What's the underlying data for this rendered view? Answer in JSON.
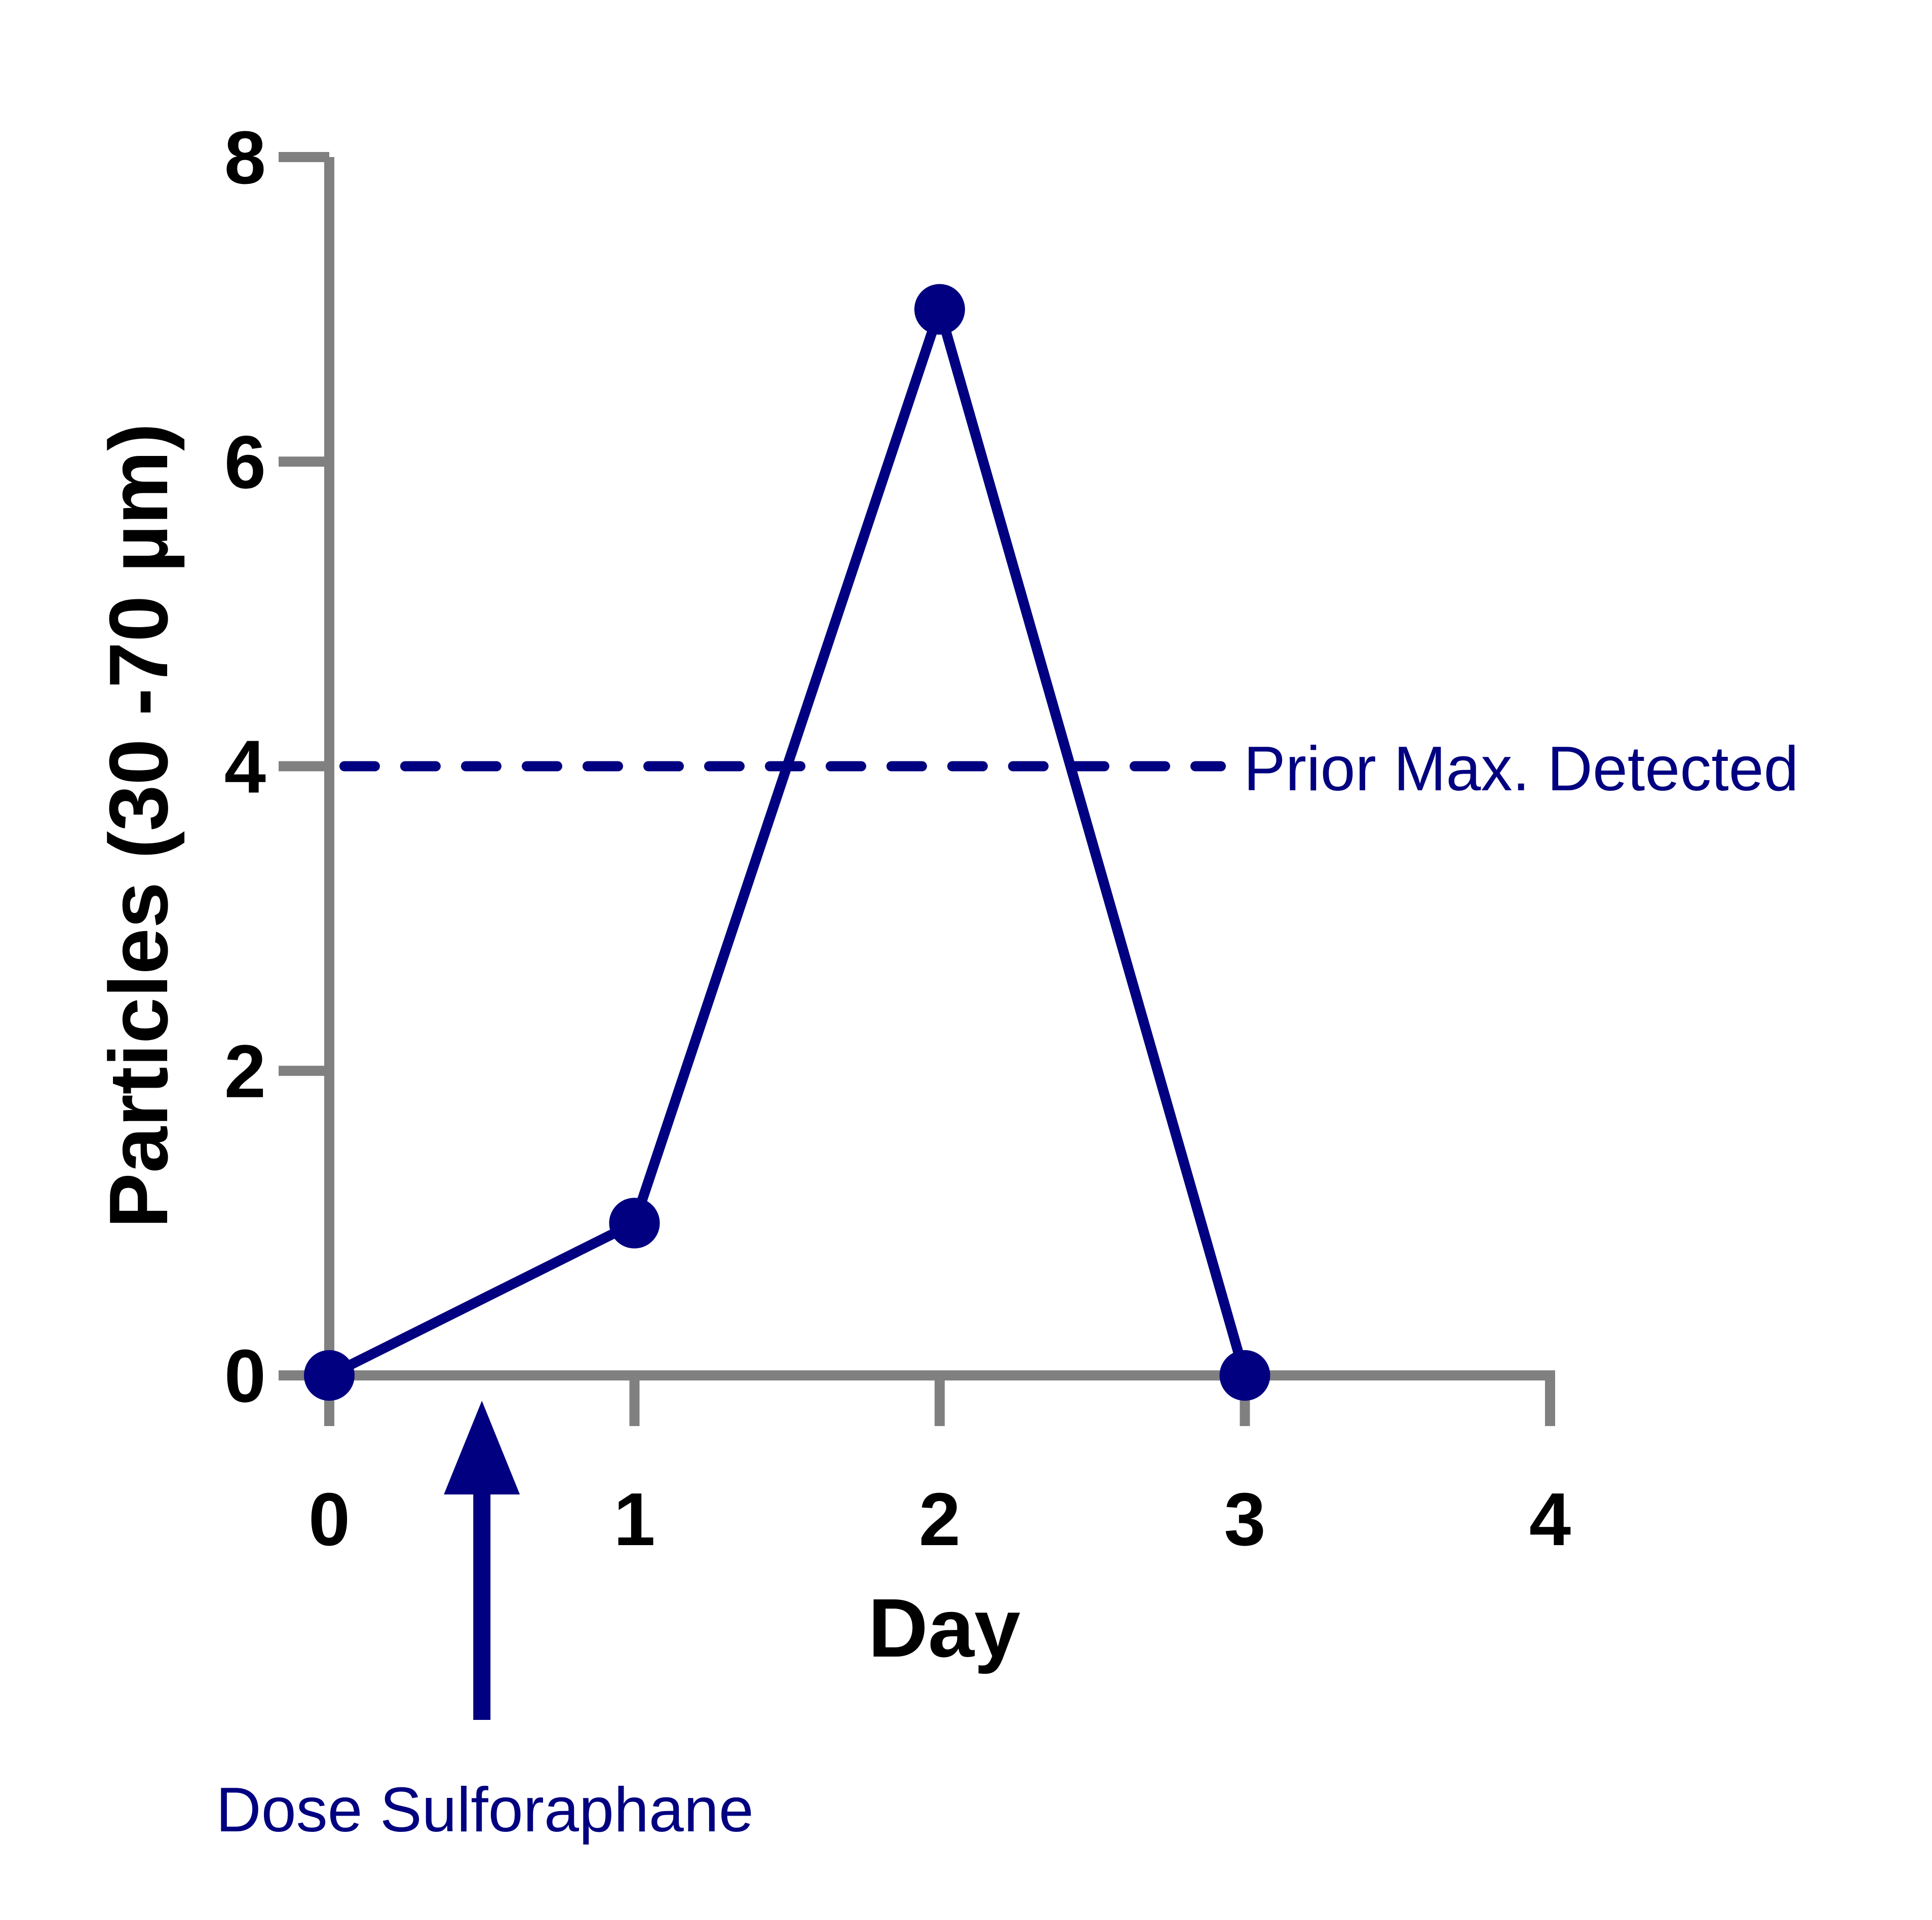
{
  "chart_data": {
    "type": "line",
    "title": "",
    "xlabel": "Day",
    "ylabel": "Particles (30 -70 µm)",
    "xlim": [
      0,
      4
    ],
    "ylim": [
      0,
      8
    ],
    "x_ticks": [
      "0",
      "1",
      "2",
      "3",
      "4"
    ],
    "y_ticks": [
      "0",
      "2",
      "4",
      "6",
      "8"
    ],
    "grid": false,
    "legend": "none",
    "series": [
      {
        "x": [
          0,
          1,
          2,
          3
        ],
        "y": [
          0,
          1,
          7,
          0
        ],
        "color": "#000080",
        "marker": "circle"
      }
    ],
    "reference_line": {
      "y": 4,
      "style": "dashed",
      "color": "#000080",
      "label": "Prior Max.  Detected"
    },
    "annotations": [
      {
        "text": "Dose Sulforaphane",
        "x": 0.5,
        "marker": "up-arrow",
        "color": "#000080"
      }
    ],
    "axis_color": "#808080"
  }
}
